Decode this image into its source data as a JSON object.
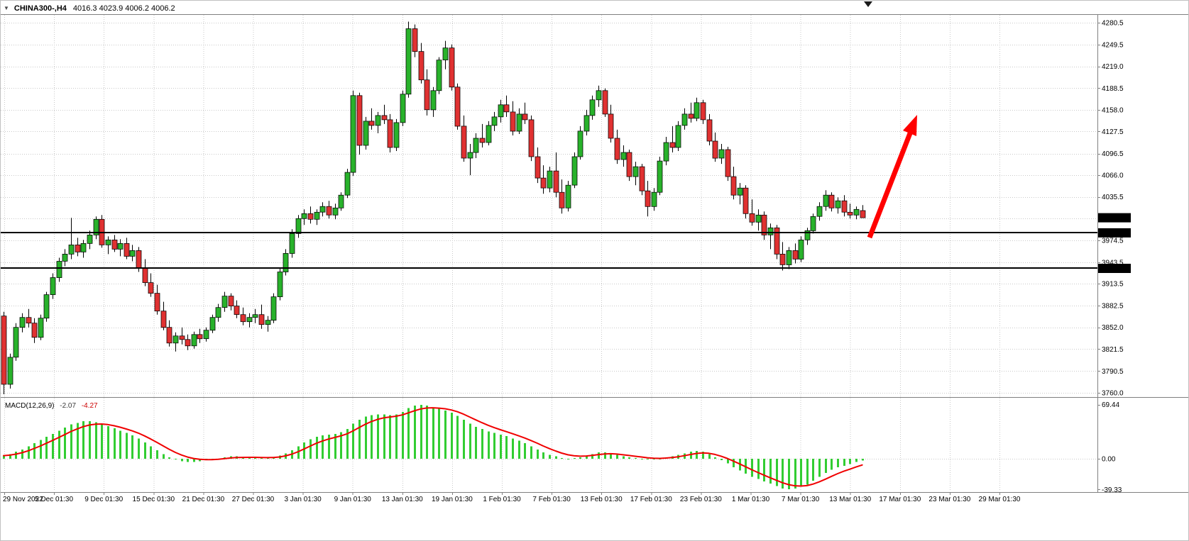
{
  "title_bar": {
    "symbol_period": "CHINA300-,H4",
    "ohlc": "4016.3 4023.9 4006.2 4006.2",
    "dropdown_icon": "▼"
  },
  "colors": {
    "background": "#ffffff",
    "grid": "#c9c9c9",
    "border": "#808080",
    "candle_up": "#28b22b",
    "candle_down": "#e03131",
    "candle_outline": "#000000",
    "macd_histogram": "#32cd32",
    "macd_signal": "#f00000",
    "hline": "#000000",
    "badge_bg": "#000000",
    "badge_text": "#ffffff",
    "axis_text": "#000000"
  },
  "chart_data": {
    "type": "candlestick",
    "symbol": "CHINA300-",
    "timeframe": "H4",
    "current_bar": {
      "open": 4016.3,
      "high": 4023.9,
      "low": 4006.2,
      "close": 4006.2
    },
    "price_axis": {
      "side": "right",
      "ticks": [
        4280.5,
        4249.5,
        4219.0,
        4188.5,
        4158.0,
        4127.5,
        4096.5,
        4066.0,
        4035.5,
        3974.5,
        3943.5,
        3913.5,
        3882.5,
        3852.0,
        3821.5,
        3790.5,
        3760.0
      ],
      "hidden_gridline": 4005.0
    },
    "time_axis": {
      "labels": [
        "29 Nov 2022",
        "5 Dec 01:30",
        "9 Dec 01:30",
        "15 Dec 01:30",
        "21 Dec 01:30",
        "27 Dec 01:30",
        "3 Jan 01:30",
        "9 Jan 01:30",
        "13 Jan 01:30",
        "19 Jan 01:30",
        "1 Feb 01:30",
        "7 Feb 01:30",
        "13 Feb 01:30",
        "17 Feb 01:30",
        "23 Feb 01:30",
        "1 Mar 01:30",
        "7 Mar 01:30",
        "13 Mar 01:30",
        "17 Mar 01:30",
        "23 Mar 01:30",
        "29 Mar 01:30"
      ]
    },
    "hlines": [
      {
        "value": 3985.0,
        "label": "3985.0",
        "name": "level-line-3985"
      },
      {
        "value": 3935.0,
        "label": "3935.0",
        "name": "level-line-3935"
      }
    ],
    "current_price": {
      "value": 4006.2,
      "label": "4006.2"
    },
    "candles": [
      [
        3868,
        3874,
        3758,
        3772
      ],
      [
        3772,
        3815,
        3766,
        3810
      ],
      [
        3810,
        3858,
        3805,
        3852
      ],
      [
        3852,
        3872,
        3845,
        3866
      ],
      [
        3866,
        3878,
        3852,
        3858
      ],
      [
        3858,
        3865,
        3830,
        3838
      ],
      [
        3838,
        3870,
        3834,
        3865
      ],
      [
        3865,
        3902,
        3860,
        3898
      ],
      [
        3898,
        3928,
        3892,
        3922
      ],
      [
        3922,
        3950,
        3916,
        3945
      ],
      [
        3945,
        3962,
        3938,
        3955
      ],
      [
        3955,
        4006,
        3948,
        3968
      ],
      [
        3968,
        3978,
        3952,
        3958
      ],
      [
        3958,
        3975,
        3950,
        3970
      ],
      [
        3970,
        3988,
        3962,
        3982
      ],
      [
        3982,
        4008,
        3976,
        4004
      ],
      [
        4004,
        4010,
        3964,
        3968
      ],
      [
        3968,
        3980,
        3955,
        3975
      ],
      [
        3975,
        3982,
        3958,
        3962
      ],
      [
        3962,
        3976,
        3952,
        3970
      ],
      [
        3970,
        3978,
        3948,
        3952
      ],
      [
        3952,
        3968,
        3945,
        3960
      ],
      [
        3960,
        3965,
        3930,
        3935
      ],
      [
        3935,
        3948,
        3910,
        3915
      ],
      [
        3915,
        3928,
        3895,
        3900
      ],
      [
        3900,
        3912,
        3870,
        3875
      ],
      [
        3875,
        3888,
        3848,
        3852
      ],
      [
        3852,
        3862,
        3825,
        3830
      ],
      [
        3830,
        3845,
        3818,
        3840
      ],
      [
        3840,
        3852,
        3828,
        3835
      ],
      [
        3835,
        3842,
        3820,
        3826
      ],
      [
        3826,
        3846,
        3822,
        3842
      ],
      [
        3842,
        3850,
        3830,
        3836
      ],
      [
        3836,
        3852,
        3832,
        3848
      ],
      [
        3848,
        3870,
        3844,
        3866
      ],
      [
        3866,
        3885,
        3860,
        3880
      ],
      [
        3880,
        3902,
        3874,
        3896
      ],
      [
        3896,
        3900,
        3876,
        3882
      ],
      [
        3882,
        3890,
        3865,
        3870
      ],
      [
        3870,
        3880,
        3855,
        3860
      ],
      [
        3860,
        3872,
        3852,
        3866
      ],
      [
        3866,
        3878,
        3858,
        3870
      ],
      [
        3870,
        3884,
        3850,
        3856
      ],
      [
        3856,
        3868,
        3846,
        3862
      ],
      [
        3862,
        3900,
        3858,
        3895
      ],
      [
        3895,
        3935,
        3890,
        3930
      ],
      [
        3930,
        3962,
        3925,
        3956
      ],
      [
        3956,
        3990,
        3950,
        3984
      ],
      [
        3984,
        4010,
        3978,
        4005
      ],
      [
        4005,
        4018,
        3996,
        4012
      ],
      [
        4012,
        4022,
        3998,
        4004
      ],
      [
        4004,
        4018,
        3996,
        4014
      ],
      [
        4014,
        4028,
        4008,
        4022
      ],
      [
        4022,
        4030,
        4005,
        4010
      ],
      [
        4010,
        4026,
        4004,
        4020
      ],
      [
        4020,
        4042,
        4016,
        4038
      ],
      [
        4038,
        4075,
        4034,
        4070
      ],
      [
        4070,
        4185,
        4065,
        4178
      ],
      [
        4178,
        4182,
        4095,
        4108
      ],
      [
        4108,
        4148,
        4102,
        4142
      ],
      [
        4142,
        4160,
        4130,
        4136
      ],
      [
        4136,
        4155,
        4125,
        4150
      ],
      [
        4150,
        4165,
        4138,
        4144
      ],
      [
        4144,
        4152,
        4098,
        4105
      ],
      [
        4105,
        4145,
        4100,
        4140
      ],
      [
        4140,
        4185,
        4135,
        4180
      ],
      [
        4180,
        4282,
        4175,
        4272
      ],
      [
        4272,
        4278,
        4232,
        4240
      ],
      [
        4240,
        4252,
        4195,
        4200
      ],
      [
        4200,
        4215,
        4150,
        4158
      ],
      [
        4158,
        4190,
        4148,
        4185
      ],
      [
        4185,
        4232,
        4180,
        4228
      ],
      [
        4228,
        4255,
        4215,
        4245
      ],
      [
        4245,
        4250,
        4185,
        4190
      ],
      [
        4190,
        4195,
        4130,
        4135
      ],
      [
        4135,
        4150,
        4085,
        4090
      ],
      [
        4090,
        4110,
        4066,
        4098
      ],
      [
        4098,
        4125,
        4090,
        4118
      ],
      [
        4118,
        4138,
        4105,
        4112
      ],
      [
        4112,
        4142,
        4108,
        4136
      ],
      [
        4136,
        4155,
        4128,
        4148
      ],
      [
        4148,
        4172,
        4140,
        4165
      ],
      [
        4165,
        4178,
        4148,
        4155
      ],
      [
        4155,
        4170,
        4122,
        4128
      ],
      [
        4128,
        4160,
        4124,
        4152
      ],
      [
        4152,
        4168,
        4138,
        4144
      ],
      [
        4144,
        4150,
        4086,
        4092
      ],
      [
        4092,
        4105,
        4055,
        4062
      ],
      [
        4062,
        4080,
        4040,
        4048
      ],
      [
        4048,
        4078,
        4042,
        4072
      ],
      [
        4072,
        4098,
        4035,
        4042
      ],
      [
        4042,
        4060,
        4012,
        4020
      ],
      [
        4020,
        4058,
        4015,
        4052
      ],
      [
        4052,
        4098,
        4048,
        4092
      ],
      [
        4092,
        4135,
        4088,
        4128
      ],
      [
        4128,
        4158,
        4122,
        4150
      ],
      [
        4150,
        4178,
        4144,
        4172
      ],
      [
        4172,
        4192,
        4162,
        4185
      ],
      [
        4185,
        4188,
        4148,
        4152
      ],
      [
        4152,
        4165,
        4112,
        4118
      ],
      [
        4118,
        4130,
        4082,
        4088
      ],
      [
        4088,
        4108,
        4078,
        4098
      ],
      [
        4098,
        4102,
        4058,
        4064
      ],
      [
        4064,
        4085,
        4052,
        4078
      ],
      [
        4078,
        4082,
        4038,
        4044
      ],
      [
        4044,
        4058,
        4008,
        4022
      ],
      [
        4022,
        4048,
        4016,
        4042
      ],
      [
        4042,
        4092,
        4038,
        4086
      ],
      [
        4086,
        4120,
        4080,
        4112
      ],
      [
        4112,
        4135,
        4098,
        4105
      ],
      [
        4105,
        4142,
        4100,
        4136
      ],
      [
        4136,
        4160,
        4130,
        4152
      ],
      [
        4152,
        4168,
        4140,
        4146
      ],
      [
        4146,
        4175,
        4142,
        4168
      ],
      [
        4168,
        4172,
        4138,
        4144
      ],
      [
        4144,
        4152,
        4108,
        4114
      ],
      [
        4114,
        4126,
        4085,
        4090
      ],
      [
        4090,
        4110,
        4082,
        4102
      ],
      [
        4102,
        4106,
        4058,
        4064
      ],
      [
        4064,
        4078,
        4032,
        4038
      ],
      [
        4038,
        4055,
        4025,
        4048
      ],
      [
        4048,
        4052,
        4005,
        4012
      ],
      [
        4012,
        4032,
        3995,
        4000
      ],
      [
        4000,
        4018,
        3988,
        4010
      ],
      [
        4010,
        4015,
        3975,
        3982
      ],
      [
        3982,
        3998,
        3962,
        3992
      ],
      [
        3992,
        3996,
        3948,
        3955
      ],
      [
        3955,
        3972,
        3932,
        3940
      ],
      [
        3940,
        3965,
        3934,
        3960
      ],
      [
        3960,
        3970,
        3942,
        3948
      ],
      [
        3948,
        3980,
        3944,
        3975
      ],
      [
        3975,
        3992,
        3968,
        3988
      ],
      [
        3988,
        4012,
        3984,
        4008
      ],
      [
        4008,
        4028,
        4002,
        4022
      ],
      [
        4022,
        4045,
        4016,
        4038
      ],
      [
        4038,
        4042,
        4015,
        4020
      ],
      [
        4020,
        4035,
        4012,
        4030
      ],
      [
        4030,
        4038,
        4008,
        4014
      ],
      [
        4014,
        4026,
        4005,
        4010
      ],
      [
        4010,
        4022,
        4004,
        4018
      ],
      [
        4016.3,
        4023.9,
        4006.2,
        4006.2
      ]
    ],
    "macd": {
      "label": "MACD(12,26,9)",
      "value_main": "-2.07",
      "value_signal": "-4.27",
      "axis_ticks": [
        {
          "v": 69.44,
          "t": "69.44"
        },
        {
          "v": 0,
          "t": "0.00"
        },
        {
          "v": -39.33,
          "t": "-39.33"
        }
      ],
      "histogram": [
        4,
        6,
        9,
        12,
        16,
        20,
        24,
        28,
        32,
        36,
        40,
        44,
        46,
        48,
        48,
        47,
        45,
        42,
        39,
        36,
        33,
        30,
        26,
        21,
        16,
        11,
        6,
        2,
        -1,
        -3,
        -4,
        -4,
        -3,
        -2,
        -1,
        0,
        2,
        3,
        3,
        2,
        2,
        2,
        1,
        1,
        2,
        4,
        7,
        11,
        16,
        21,
        25,
        28,
        30,
        31,
        32,
        34,
        38,
        45,
        50,
        54,
        56,
        57,
        57,
        56,
        57,
        60,
        65,
        68,
        69,
        68,
        66,
        64,
        62,
        59,
        55,
        50,
        45,
        41,
        38,
        35,
        33,
        31,
        29,
        26,
        23,
        20,
        16,
        12,
        8,
        5,
        3,
        1,
        0,
        1,
        2,
        4,
        6,
        8,
        8,
        7,
        5,
        3,
        2,
        1,
        0,
        -1,
        -1,
        0,
        2,
        3,
        5,
        7,
        9,
        10,
        9,
        6,
        2,
        -2,
        -6,
        -11,
        -15,
        -19,
        -23,
        -26,
        -29,
        -32,
        -35,
        -38,
        -39,
        -38,
        -36,
        -33,
        -28,
        -23,
        -18,
        -14,
        -11,
        -9,
        -7,
        -4,
        -2.07
      ]
    },
    "annotation": {
      "type": "arrow-up",
      "color": "#ff0000"
    }
  }
}
